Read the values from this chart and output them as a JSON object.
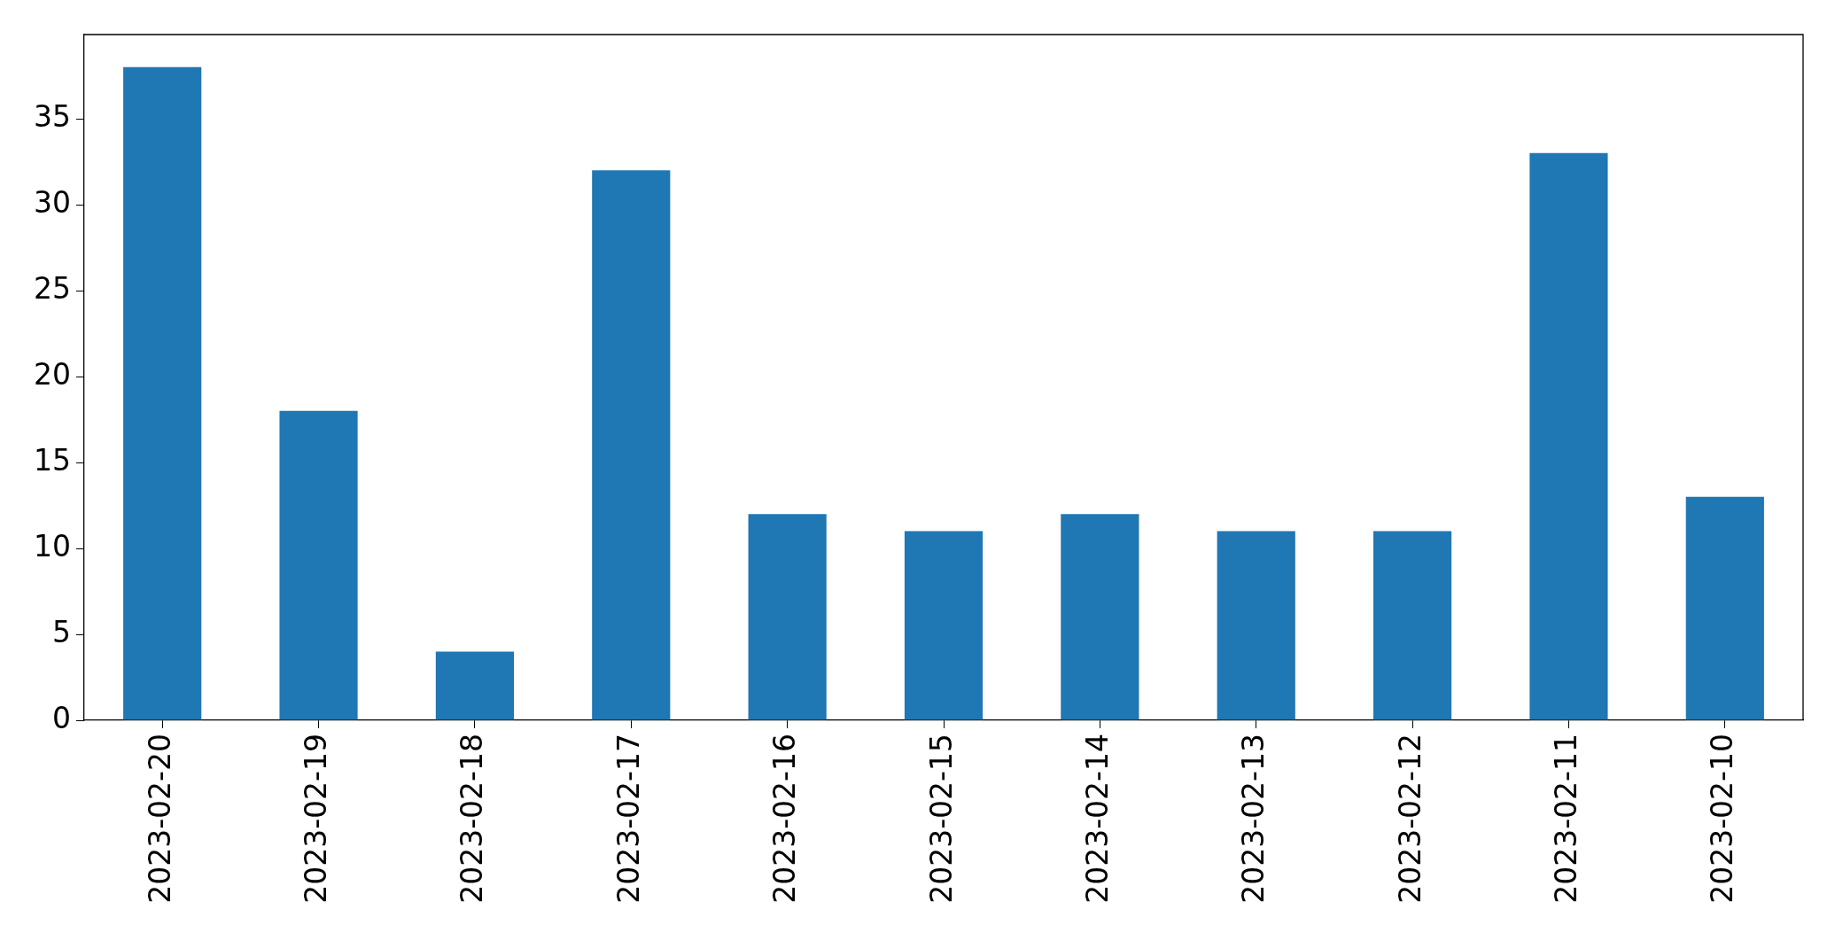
{
  "chart_data": {
    "type": "bar",
    "categories": [
      "2023-02-20",
      "2023-02-19",
      "2023-02-18",
      "2023-02-17",
      "2023-02-16",
      "2023-02-15",
      "2023-02-14",
      "2023-02-13",
      "2023-02-12",
      "2023-02-11",
      "2023-02-10"
    ],
    "values": [
      38,
      18,
      4,
      32,
      12,
      11,
      12,
      11,
      11,
      33,
      13
    ],
    "color": "#1f77b4",
    "ylim": [
      0,
      39.9
    ],
    "yticks": [
      0,
      5,
      10,
      15,
      20,
      25,
      30,
      35
    ]
  }
}
